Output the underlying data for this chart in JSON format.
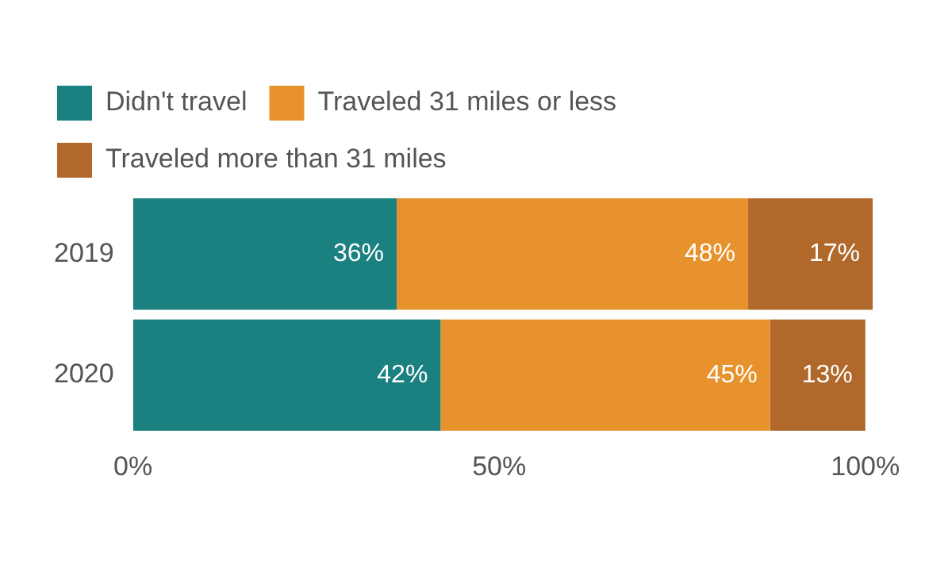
{
  "chart_data": {
    "type": "bar",
    "orientation": "horizontal",
    "stacked": true,
    "categories": [
      "2019",
      "2020"
    ],
    "series": [
      {
        "name": "Didn't travel",
        "color": "#1a8080",
        "values": [
          36,
          42
        ],
        "value_labels": [
          "36%",
          "42%"
        ]
      },
      {
        "name": "Traveled 31 miles or less",
        "color": "#e8922e",
        "values": [
          48,
          45
        ],
        "value_labels": [
          "48%",
          "45%"
        ]
      },
      {
        "name": "Traveled more than 31 miles",
        "color": "#b0692a",
        "values": [
          17,
          13
        ],
        "value_labels": [
          "17%",
          "13%"
        ]
      }
    ],
    "xlim": [
      0,
      101
    ],
    "xticks": [
      {
        "value": 0,
        "label": "0%"
      },
      {
        "value": 50,
        "label": "50%"
      },
      {
        "value": 100,
        "label": "100%"
      }
    ],
    "grid": false,
    "legend": "top left"
  }
}
